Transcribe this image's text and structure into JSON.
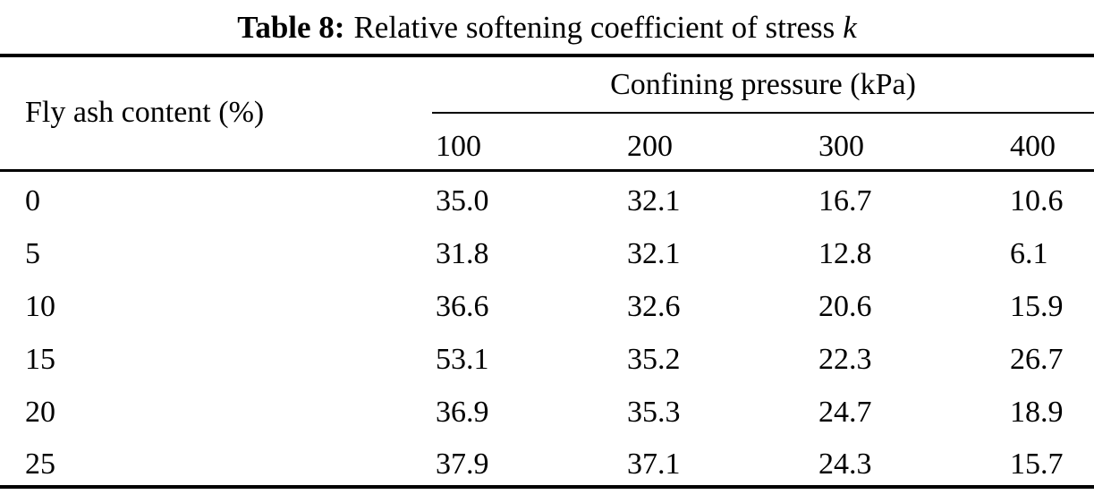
{
  "caption": {
    "label": "Table 8:",
    "text": "Relative softening coefficient of stress",
    "symbol": "k"
  },
  "table": {
    "row_header": "Fly ash content (%)",
    "col_group_header": "Confining pressure (kPa)",
    "col_headers": [
      "100",
      "200",
      "300",
      "400"
    ],
    "rows": [
      {
        "label": "0",
        "values": [
          "35.0",
          "32.1",
          "16.7",
          "10.6"
        ]
      },
      {
        "label": "5",
        "values": [
          "31.8",
          "32.1",
          "12.8",
          "6.1"
        ]
      },
      {
        "label": "10",
        "values": [
          "36.6",
          "32.6",
          "20.6",
          "15.9"
        ]
      },
      {
        "label": "15",
        "values": [
          "53.1",
          "35.2",
          "22.3",
          "26.7"
        ]
      },
      {
        "label": "20",
        "values": [
          "36.9",
          "35.3",
          "24.7",
          "18.9"
        ]
      },
      {
        "label": "25",
        "values": [
          "37.9",
          "37.1",
          "24.3",
          "15.7"
        ]
      }
    ]
  },
  "colors": {
    "background": "#ffffff",
    "text": "#000000",
    "rule": "#000000"
  },
  "chart_data": {
    "type": "table",
    "title": "Table 8: Relative softening coefficient of stress k",
    "row_dimension": "Fly ash content (%)",
    "column_dimension": "Confining pressure (kPa)",
    "columns": [
      100,
      200,
      300,
      400
    ],
    "rows": [
      {
        "fly_ash_content_pct": 0,
        "k_values": [
          35.0,
          32.1,
          16.7,
          10.6
        ]
      },
      {
        "fly_ash_content_pct": 5,
        "k_values": [
          31.8,
          32.1,
          12.8,
          6.1
        ]
      },
      {
        "fly_ash_content_pct": 10,
        "k_values": [
          36.6,
          32.6,
          20.6,
          15.9
        ]
      },
      {
        "fly_ash_content_pct": 15,
        "k_values": [
          53.1,
          35.2,
          22.3,
          26.7
        ]
      },
      {
        "fly_ash_content_pct": 20,
        "k_values": [
          36.9,
          35.3,
          24.7,
          18.9
        ]
      },
      {
        "fly_ash_content_pct": 25,
        "k_values": [
          37.9,
          37.1,
          24.3,
          15.7
        ]
      }
    ]
  }
}
